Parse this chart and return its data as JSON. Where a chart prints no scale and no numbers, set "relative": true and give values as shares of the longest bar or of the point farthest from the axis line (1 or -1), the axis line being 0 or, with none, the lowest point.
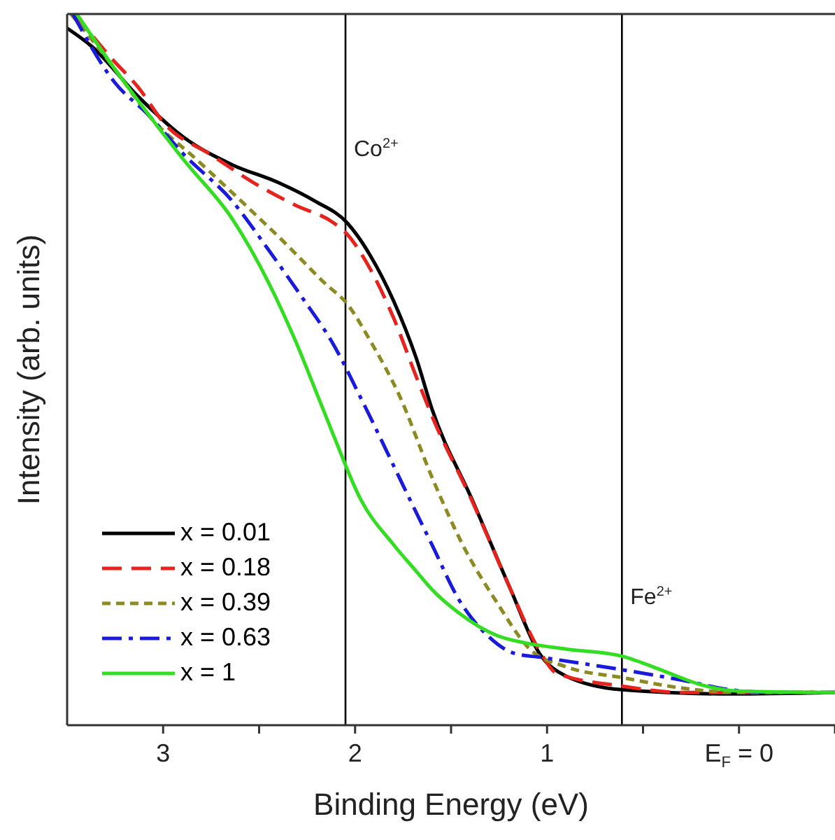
{
  "chart_data": {
    "type": "line",
    "relative": true,
    "xlabel": "Binding Energy (eV)",
    "ylabel": "Intensity (arb. units)",
    "xlim": [
      3.5,
      -0.5
    ],
    "xticks": [
      3,
      {
        "value": 2.5,
        "label": null
      },
      2,
      {
        "value": 1.5,
        "label": null
      },
      1,
      {
        "value": 0.5,
        "label": null
      },
      {
        "value": 0,
        "label": "E$_{F}$ = 0"
      },
      {
        "value": -0.5,
        "label": null
      }
    ],
    "legend": "bottom left",
    "grid": false,
    "marker": "none",
    "series": [
      {
        "name": "x = 0.01",
        "color": "#000000",
        "line_style": "solid",
        "x": [
          3.5,
          3.37,
          3.13,
          2.89,
          2.64,
          2.4,
          2.21,
          2.04,
          1.92,
          1.8,
          1.68,
          1.6,
          1.39,
          1.19,
          1.04,
          0.9,
          0.61,
          0.05,
          -0.5
        ],
        "values": [
          0.98,
          0.954,
          0.884,
          0.826,
          0.788,
          0.763,
          0.737,
          0.706,
          0.66,
          0.597,
          0.515,
          0.445,
          0.317,
          0.191,
          0.101,
          0.069,
          0.05,
          0.044,
          0.046
        ]
      },
      {
        "name": "x = 0.18",
        "color": "#e8231e",
        "line_style": "dashed",
        "x": [
          3.46,
          3.28,
          3.13,
          2.99,
          2.75,
          2.53,
          2.31,
          2.11,
          2.04,
          1.95,
          1.8,
          1.68,
          1.6,
          1.39,
          1.19,
          1.04,
          0.95,
          0.61,
          0.29,
          -0.5
        ],
        "values": [
          1.0,
          0.941,
          0.897,
          0.845,
          0.802,
          0.763,
          0.731,
          0.706,
          0.69,
          0.655,
          0.573,
          0.489,
          0.435,
          0.315,
          0.191,
          0.105,
          0.073,
          0.055,
          0.046,
          0.046
        ]
      },
      {
        "name": "x = 0.39",
        "color": "#8b8b22",
        "line_style": "dotted",
        "x": [
          3.48,
          3.25,
          3.08,
          2.82,
          2.57,
          2.35,
          2.16,
          2.04,
          1.92,
          1.77,
          1.6,
          1.44,
          1.26,
          1.09,
          0.9,
          0.61,
          0.29,
          0,
          -0.5
        ],
        "values": [
          1.0,
          0.922,
          0.859,
          0.794,
          0.731,
          0.674,
          0.622,
          0.592,
          0.54,
          0.464,
          0.349,
          0.254,
          0.172,
          0.107,
          0.082,
          0.067,
          0.052,
          0.046,
          0.046
        ]
      },
      {
        "name": "x = 0.63",
        "color": "#1a1adc",
        "line_style": "dashdot",
        "x": [
          3.47,
          3.25,
          3.08,
          2.89,
          2.64,
          2.45,
          2.28,
          2.11,
          1.97,
          1.73,
          1.6,
          1.46,
          1.31,
          1.17,
          1.02,
          0.61,
          0.29,
          0.05,
          -0.19,
          -0.5
        ],
        "values": [
          1.0,
          0.903,
          0.859,
          0.802,
          0.737,
          0.668,
          0.603,
          0.534,
          0.46,
          0.326,
          0.254,
          0.177,
          0.126,
          0.101,
          0.095,
          0.078,
          0.063,
          0.05,
          0.046,
          0.046
        ]
      },
      {
        "name": "x = 1",
        "color": "#33dd22",
        "line_style": "solid",
        "x": [
          3.45,
          3.25,
          3.13,
          2.89,
          2.64,
          2.45,
          2.31,
          2.19,
          2.11,
          1.97,
          1.8,
          1.68,
          1.6,
          1.46,
          1.26,
          1.12,
          0.9,
          0.61,
          0.39,
          0.2,
          0,
          -0.5
        ],
        "values": [
          1.0,
          0.922,
          0.878,
          0.794,
          0.712,
          0.622,
          0.54,
          0.46,
          0.406,
          0.317,
          0.254,
          0.216,
          0.191,
          0.158,
          0.126,
          0.116,
          0.107,
          0.097,
          0.076,
          0.057,
          0.048,
          0.046
        ]
      }
    ],
    "ref_lines": [
      {
        "axis": "x",
        "value": 2.05,
        "color": "#000000"
      },
      {
        "axis": "x",
        "value": 0.61,
        "color": "#000000"
      }
    ],
    "annotations": [
      {
        "text": "Co$^{2+}$",
        "x": 2.05,
        "y": 0.8
      },
      {
        "text": "Fe$^{2+}$",
        "x": 0.61,
        "y": 0.17
      }
    ]
  }
}
